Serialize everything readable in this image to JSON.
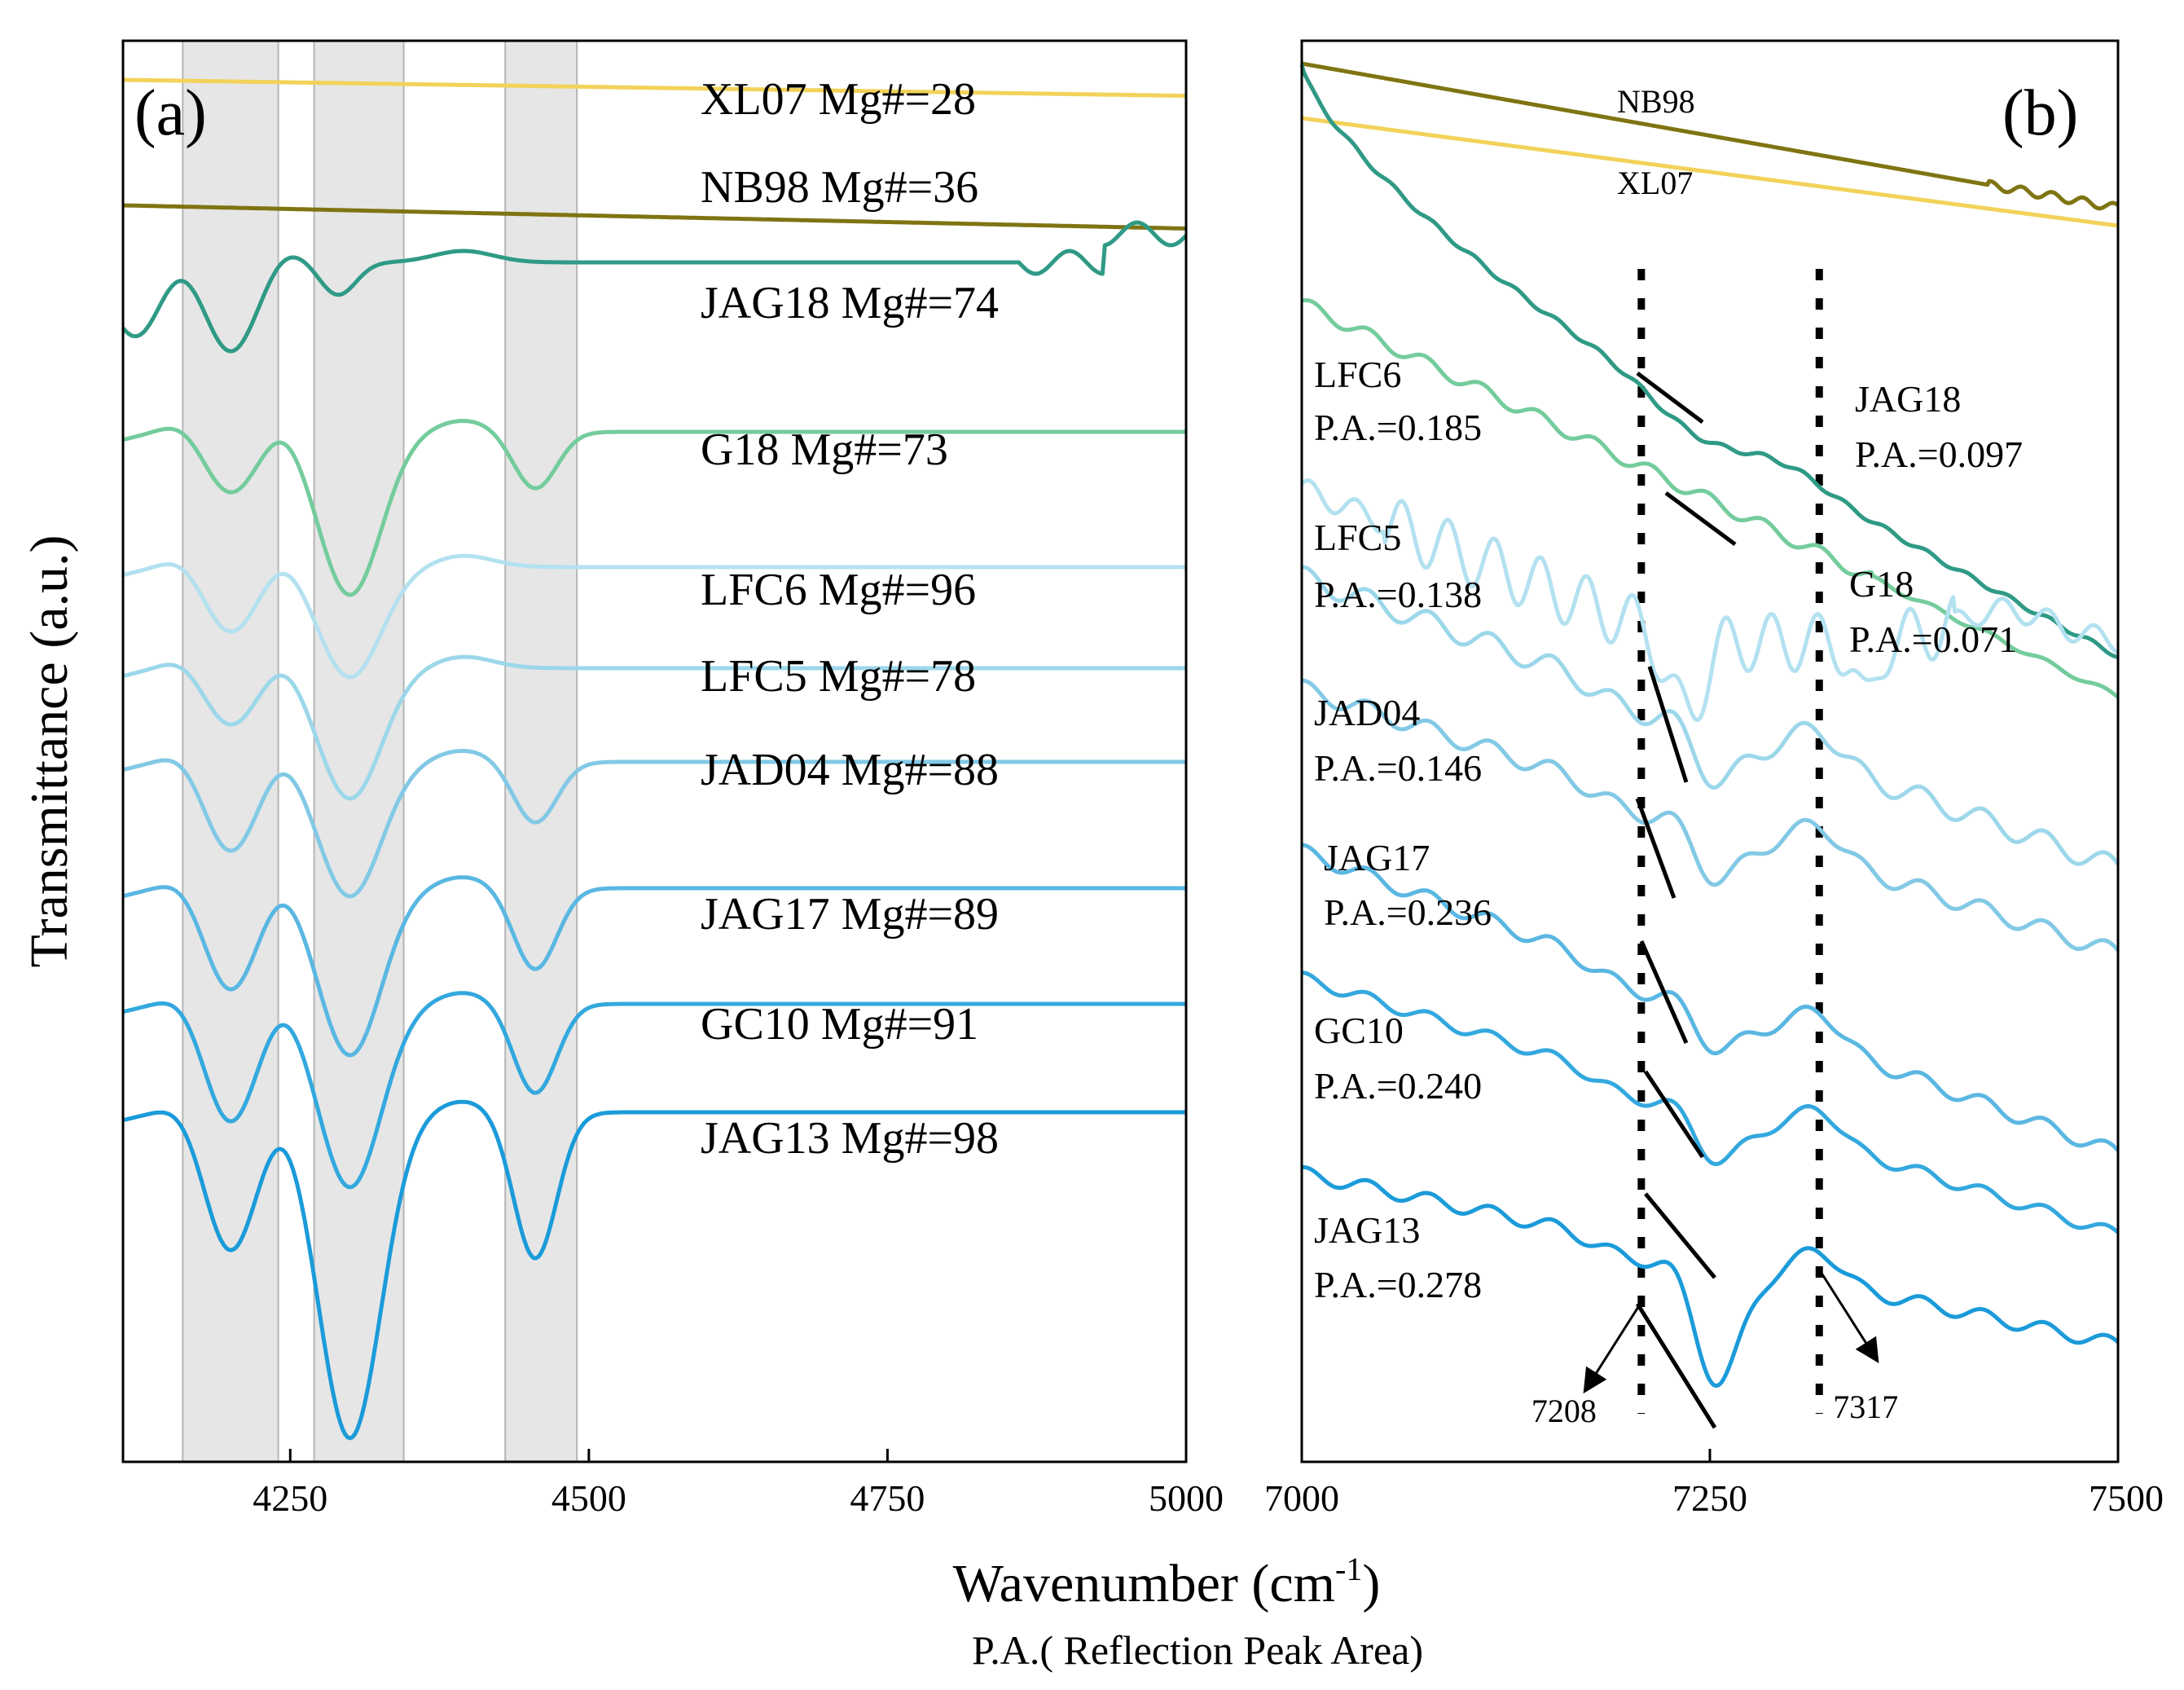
{
  "chart_data": [
    {
      "type": "line",
      "panel": "(a)",
      "title": "",
      "xlabel": "Wavenumber (cm-1)",
      "ylabel": "Transmittance (a.u.)",
      "xlim": [
        4110,
        5000
      ],
      "x_ticks": [
        4250,
        4500,
        4750,
        5000
      ],
      "x_tick_labels": [
        "4250",
        "4500",
        "4750",
        "5000"
      ],
      "shaded_bands": [
        [
          4160,
          4240
        ],
        [
          4270,
          4345
        ],
        [
          4430,
          4490
        ]
      ],
      "series": [
        {
          "name": "XL07",
          "label": "XL07 Mg#=28",
          "color": "#F2D25A"
        },
        {
          "name": "NB98",
          "label": "NB98  Mg#=36",
          "color": "#7F7412"
        },
        {
          "name": "JAG18",
          "label": "JAG18 Mg#=74",
          "color": "#2F9A86"
        },
        {
          "name": "G18",
          "label": "G18     Mg#=73",
          "color": "#74CC9C"
        },
        {
          "name": "LFC6",
          "label": "LFC6   Mg#=96",
          "color": "#B3E1F0"
        },
        {
          "name": "LFC5",
          "label": "LFC5   Mg#=78",
          "color": "#9CD7EA"
        },
        {
          "name": "JAD04",
          "label": "JAD04  Mg#=88",
          "color": "#82C9E5"
        },
        {
          "name": "JAG17",
          "label": "JAG17  Mg#=89",
          "color": "#5AB7E2"
        },
        {
          "name": "GC10",
          "label": "GC10    Mg#=91",
          "color": "#33A8DE"
        },
        {
          "name": "JAG13",
          "label": "JAG13   Mg#=98",
          "color": "#1B9BD9"
        }
      ]
    },
    {
      "type": "line",
      "panel": "(b)",
      "title": "",
      "xlim": [
        7000,
        7500
      ],
      "x_ticks": [
        7000,
        7250,
        7500
      ],
      "x_tick_labels": [
        "7000",
        "7250",
        "7500"
      ],
      "reference_lines": [
        7208,
        7317
      ],
      "series": [
        {
          "name": "NB98",
          "label": "NB98",
          "color": "#7F7412"
        },
        {
          "name": "XL07",
          "label": "XL07",
          "color": "#F2D25A"
        },
        {
          "name": "JAG18",
          "label": "JAG18",
          "pa_label": "P.A.=0.097",
          "pa": 0.097,
          "color": "#2F9A86"
        },
        {
          "name": "G18",
          "label": "G18",
          "pa_label": "P.A.=0.071",
          "pa": 0.071,
          "color": "#74CC9C"
        },
        {
          "name": "LFC6",
          "label": "LFC6",
          "pa_label": "P.A.=0.185",
          "pa": 0.185,
          "color": "#B3E1F0"
        },
        {
          "name": "LFC5",
          "label": "LFC5",
          "pa_label": "P.A.=0.138",
          "pa": 0.138,
          "color": "#9CD7EA"
        },
        {
          "name": "JAD04",
          "label": "JAD04",
          "pa_label": "P.A.=0.146",
          "pa": 0.146,
          "color": "#82C9E5"
        },
        {
          "name": "JAG17",
          "label": "JAG17",
          "pa_label": "P.A.=0.236",
          "pa": 0.236,
          "color": "#5AB7E2"
        },
        {
          "name": "GC10",
          "label": "GC10",
          "pa_label": "P.A.=0.240",
          "pa": 0.24,
          "color": "#33A8DE"
        },
        {
          "name": "JAG13",
          "label": "JAG13",
          "pa_label": "P.A.=0.278",
          "pa": 0.278,
          "color": "#1B9BD9"
        }
      ],
      "annotations": [
        {
          "text": "7208",
          "x": 7208
        },
        {
          "text": "7317",
          "x": 7317
        }
      ]
    }
  ],
  "panel_a_tag": "(a)",
  "panel_b_tag": "(b)",
  "y_axis_title": "Transmittance (a.u.)",
  "x_axis_title_main": "Wavenumber (cm",
  "x_axis_title_sup": "-1",
  "x_axis_title_close": ")",
  "footnote": "P.A.( Reflection Peak Area)"
}
